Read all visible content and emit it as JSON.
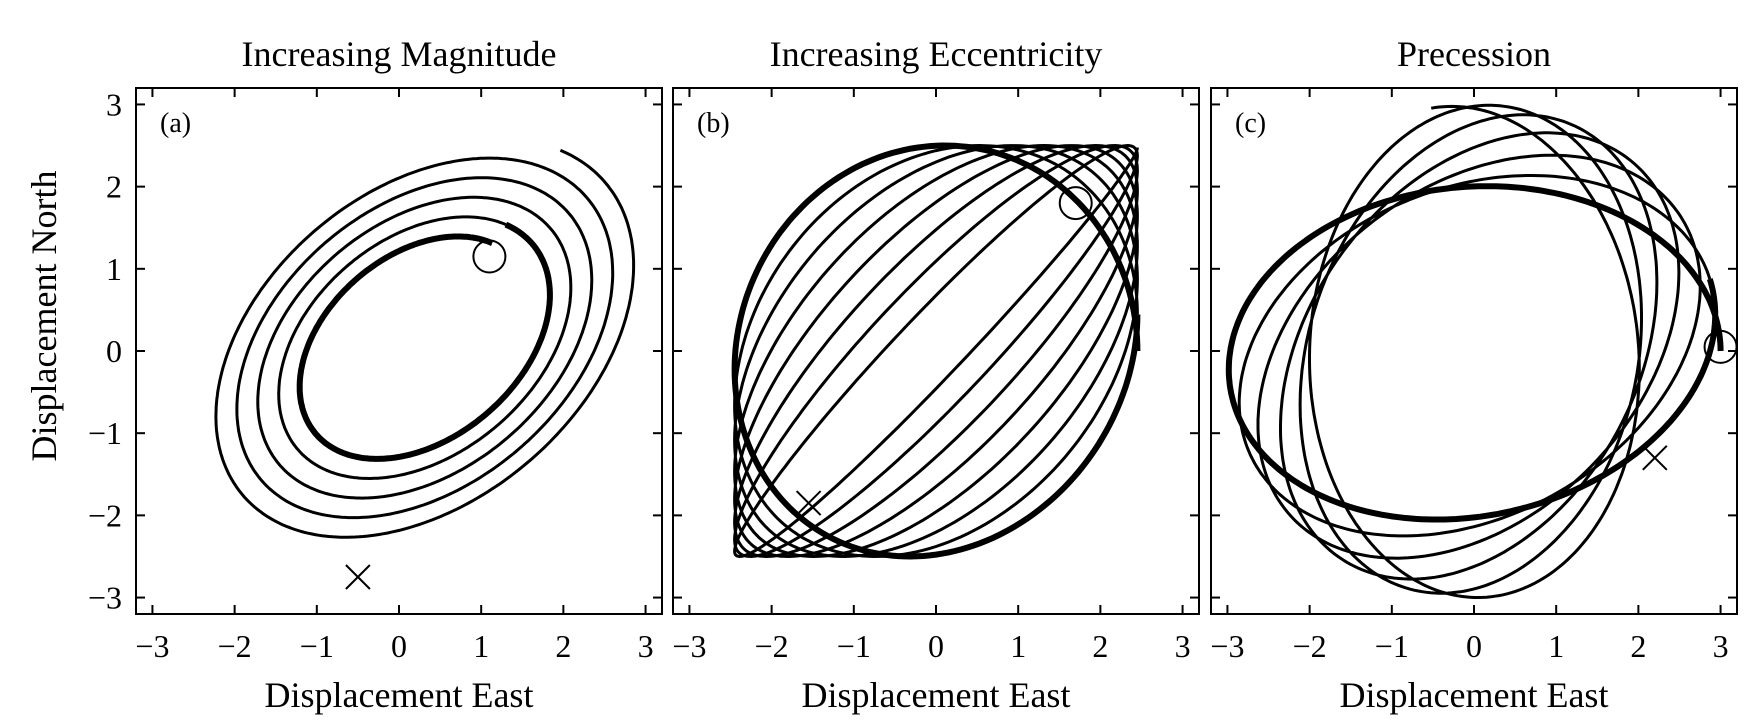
{
  "figure": {
    "ylabel": "Displacement North"
  },
  "chart_data": [
    {
      "type": "line",
      "panel": "(a)",
      "title": "Increasing Magnitude",
      "xlabel": "Displacement East",
      "ylabel": "Displacement North",
      "xlim": [
        -3.2,
        3.2
      ],
      "ylim": [
        -3.2,
        3.2
      ],
      "xticks": [
        "−3",
        "−2",
        "−1",
        "0",
        "1",
        "2",
        "3"
      ],
      "yticks": [
        "3",
        "2",
        "1",
        "0",
        "−1",
        "−2",
        "−3"
      ],
      "kind": "spiral",
      "center": [
        0.25,
        0.1
      ],
      "tilt_deg": 40,
      "semi_major": [
        1.55,
        3.0
      ],
      "semi_minor": [
        1.05,
        2.02
      ],
      "turns": 5,
      "start_marker": {
        "symbol": "circle",
        "x": 1.1,
        "y": 1.15
      },
      "end_marker": {
        "symbol": "x",
        "x": -0.5,
        "y": -2.75
      }
    },
    {
      "type": "line",
      "panel": "(b)",
      "title": "Increasing Eccentricity",
      "xlabel": "Displacement East",
      "xlim": [
        -3.2,
        3.2
      ],
      "ylim": [
        -3.2,
        3.2
      ],
      "xticks": [
        "−3",
        "−2",
        "−1",
        "0",
        "1",
        "2",
        "3"
      ],
      "kind": "lissajous",
      "x_amplitude": 2.45,
      "y_amplitude": 2.5,
      "phase_deg": [
        90,
        8
      ],
      "turns": 8,
      "start_marker": {
        "symbol": "circle",
        "x": 1.7,
        "y": 1.8
      },
      "end_marker": {
        "symbol": "x",
        "x": -1.55,
        "y": -1.85
      }
    },
    {
      "type": "line",
      "panel": "(c)",
      "title": "Precession",
      "xlabel": "Displacement East",
      "xlim": [
        -3.2,
        3.2
      ],
      "ylim": [
        -3.2,
        3.2
      ],
      "xticks": [
        "−3",
        "−2",
        "−1",
        "0",
        "1",
        "2",
        "3"
      ],
      "kind": "precessing-ellipse",
      "semi_major": 3.0,
      "semi_minor": 2.0,
      "rotation_deg": [
        0,
        100
      ],
      "turns": 6,
      "start_marker": {
        "symbol": "circle",
        "x": 3.0,
        "y": 0.05
      },
      "end_marker": {
        "symbol": "x",
        "x": 2.2,
        "y": -1.3
      }
    }
  ]
}
